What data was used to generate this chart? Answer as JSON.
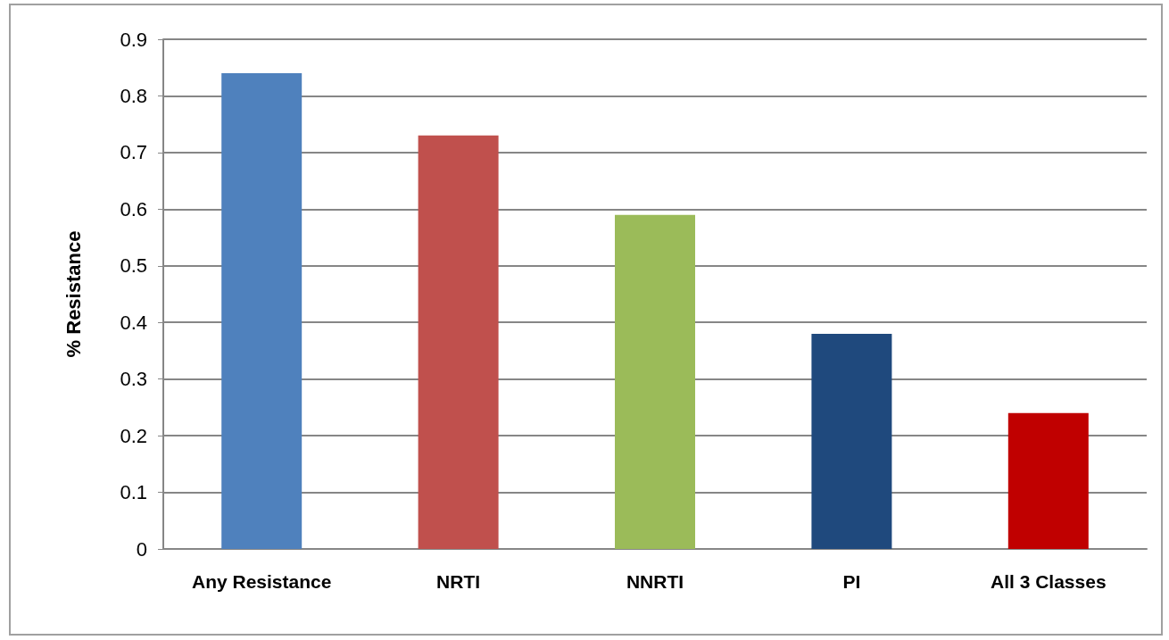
{
  "chart_data": {
    "type": "bar",
    "ylabel": "% Resistance",
    "categories": [
      "Any Resistance",
      "NRTI",
      "NNRTI",
      "PI",
      "All 3 Classes"
    ],
    "values": [
      0.84,
      0.73,
      0.59,
      0.38,
      0.24
    ],
    "colors": [
      "#4f81bd",
      "#c0504d",
      "#9bbb59",
      "#1f497d",
      "#c00000"
    ],
    "ylim": [
      0,
      0.9
    ],
    "yticks": [
      0,
      0.1,
      0.2,
      0.3,
      0.4,
      0.5,
      0.6,
      0.7,
      0.8,
      0.9
    ],
    "grid": "y"
  }
}
